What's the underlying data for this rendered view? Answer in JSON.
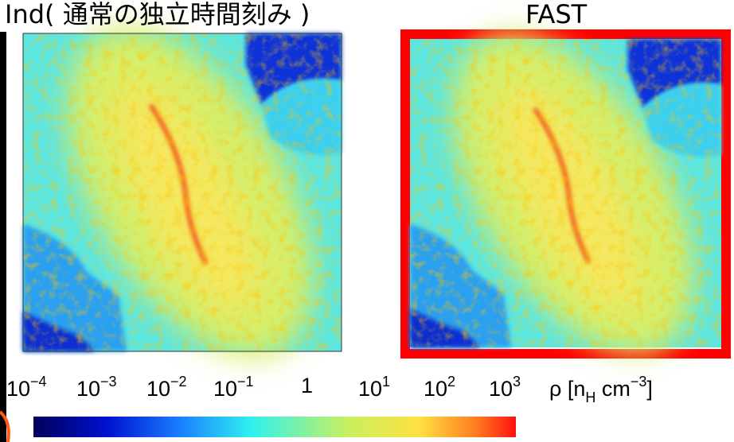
{
  "panels": [
    {
      "title": "Ind( 通常の独立時間刻み )"
    },
    {
      "title": "FAST"
    }
  ],
  "colorbar": {
    "ticks": [
      {
        "base": "10",
        "exp": "−4"
      },
      {
        "base": "10",
        "exp": "−3"
      },
      {
        "base": "10",
        "exp": "−2"
      },
      {
        "base": "10",
        "exp": "−1"
      },
      {
        "base": "1"
      },
      {
        "base": "10",
        "exp": "1"
      },
      {
        "base": "10",
        "exp": "2"
      },
      {
        "base": "10",
        "exp": "3"
      }
    ],
    "label": {
      "symbol": "ρ [n",
      "sub": "H",
      "unit": " cm",
      "sup": "−3",
      "close": "]"
    }
  }
}
